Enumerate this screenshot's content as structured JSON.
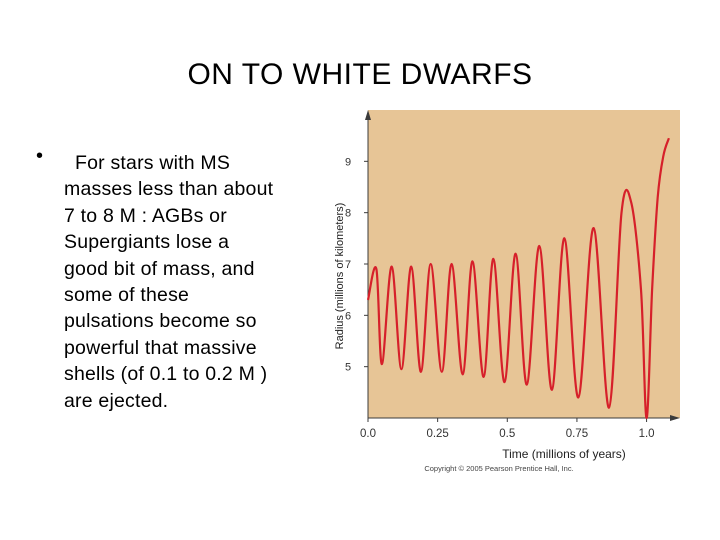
{
  "slide": {
    "title": "ON TO WHITE DWARFS",
    "bullet_symbol": "•",
    "bullet_lines": [
      "For stars with MS",
      "masses less than about",
      "7 to 8 M  : AGBs or",
      "Supergiants lose a",
      "good bit of mass, and",
      "some of these",
      "pulsations become so",
      "powerful that massive",
      "shells (of 0.1 to 0.2 M  )",
      "are ejected."
    ]
  },
  "chart_data": {
    "type": "line",
    "title": "",
    "xlabel": "Time (millions of years)",
    "ylabel": "Radius (millions of kilometers)",
    "xlim": [
      0.0,
      1.12
    ],
    "ylim": [
      4.0,
      10.0
    ],
    "x_ticks": [
      "0.0",
      "0.25",
      "0.5",
      "0.75",
      "1.0"
    ],
    "y_ticks": [
      "5",
      "6",
      "7",
      "8",
      "9"
    ],
    "copyright": "Copyright © 2005 Pearson Prentice Hall, Inc.",
    "background_color": "#e7c596",
    "line_color": "#d6202a",
    "series": [
      {
        "x": [
          0.0,
          0.03,
          0.05,
          0.085,
          0.12,
          0.155,
          0.19,
          0.225,
          0.265,
          0.3,
          0.34,
          0.375,
          0.415,
          0.45,
          0.49,
          0.53,
          0.57,
          0.615,
          0.66,
          0.705,
          0.755,
          0.81,
          0.865,
          0.91,
          0.945,
          0.98,
          1.0,
          1.02,
          1.04,
          1.06,
          1.08
        ],
        "y": [
          6.3,
          6.9,
          5.05,
          6.95,
          4.95,
          6.95,
          4.9,
          7.0,
          4.9,
          7.0,
          4.85,
          7.05,
          4.8,
          7.1,
          4.7,
          7.2,
          4.65,
          7.35,
          4.55,
          7.5,
          4.4,
          7.7,
          4.2,
          8.0,
          8.2,
          6.5,
          4.0,
          6.5,
          8.3,
          9.1,
          9.45
        ]
      }
    ]
  }
}
